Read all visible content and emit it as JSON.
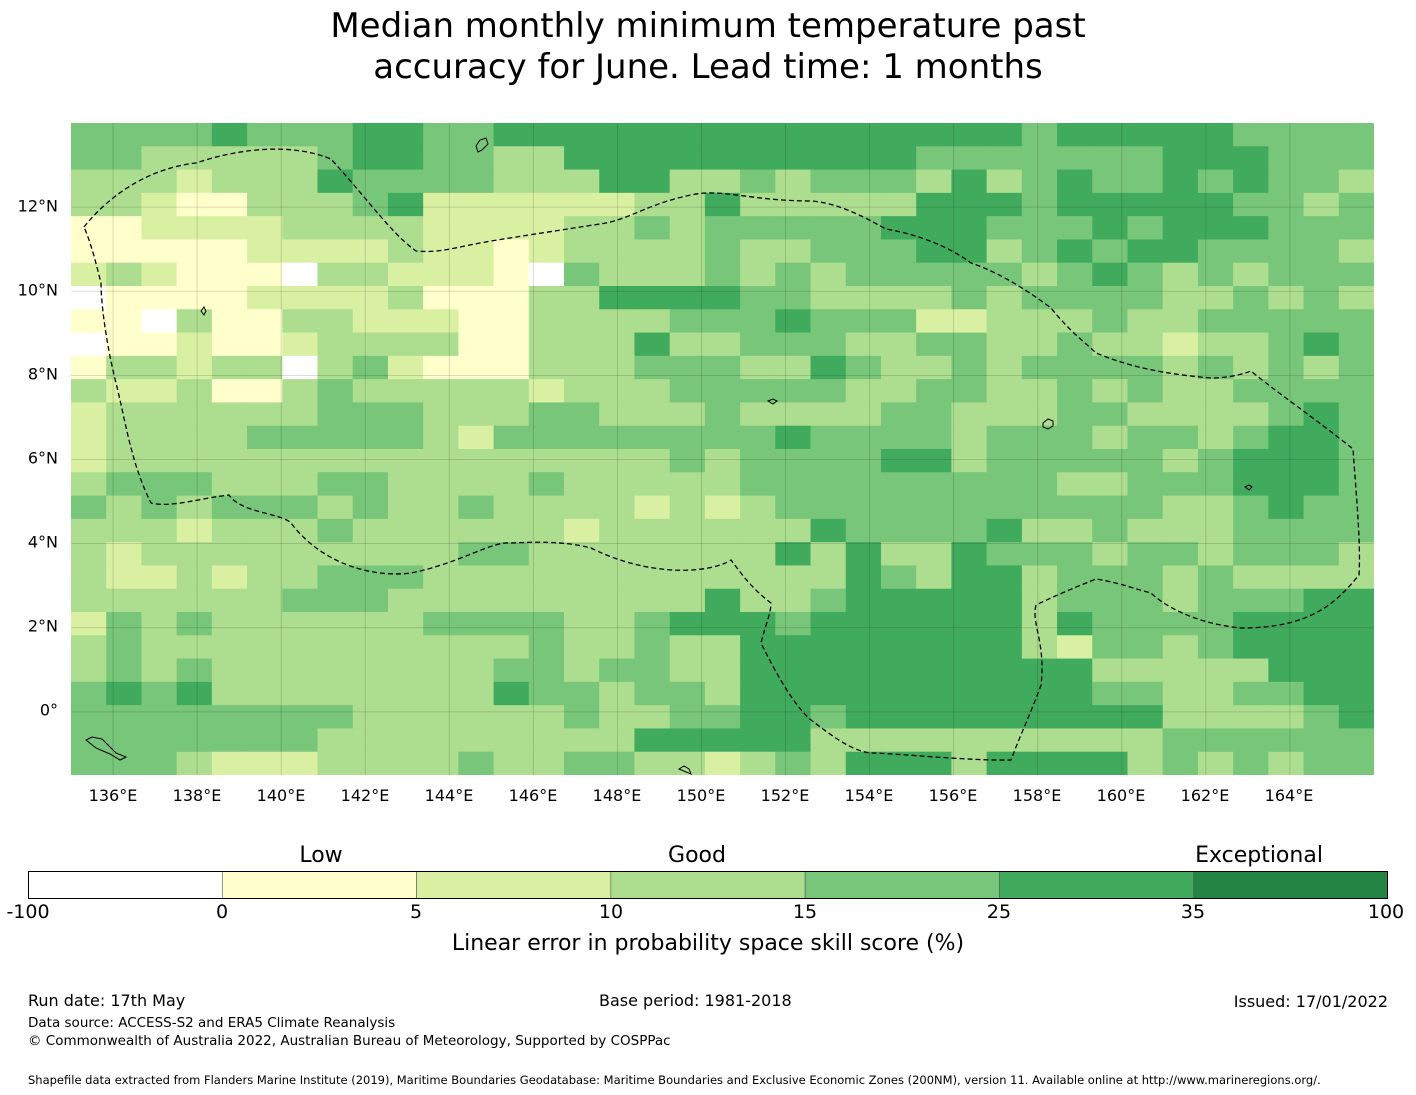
{
  "title_line1": "Median monthly minimum temperature past",
  "title_line2": "accuracy for June. Lead time: 1 months",
  "x_ticks": [
    "136°E",
    "138°E",
    "140°E",
    "142°E",
    "144°E",
    "146°E",
    "148°E",
    "150°E",
    "152°E",
    "154°E",
    "156°E",
    "158°E",
    "160°E",
    "162°E",
    "164°E"
  ],
  "y_ticks": [
    "12°N",
    "10°N",
    "8°N",
    "6°N",
    "4°N",
    "2°N",
    "0°"
  ],
  "colorbar": {
    "categories": [
      "Low",
      "Good",
      "Exceptional"
    ],
    "ticks": [
      "-100",
      "0",
      "5",
      "10",
      "15",
      "25",
      "35",
      "100"
    ],
    "colors": [
      "#ffffff",
      "#ffffcc",
      "#d9f0a3",
      "#addd8e",
      "#78c679",
      "#41ab5d",
      "#238443"
    ],
    "label": "Linear error in probability space skill score (%)"
  },
  "footer": {
    "run_date": "Run date: 17th May",
    "base_period": "Base period: 1981-2018",
    "issued": "Issued: 17/01/2022",
    "data_source": "Data source: ACCESS-S2 and ERA5 Climate Reanalysis",
    "copyright": "© Commonwealth of Australia 2022, Australian Bureau of Meteorology, Supported by COSPPac",
    "shapefile": "Shapefile data extracted from Flanders Marine Institute (2019), Maritime Boundaries Geodatabase: Maritime Boundaries and Exclusive Economic Zones (200NM), version 11. Available online at http://www.marineregions.org/."
  },
  "map": {
    "lon_range": [
      135,
      166
    ],
    "lat_range": [
      -1.5,
      14
    ],
    "grid_rows": [
      "4444544455445555555555555554555554444",
      "4433333455443355555555554444444555444",
      "3332333544443335533434443534544545443",
      "3321133345222222335333335554555554434",
      "1122223333222233434444455544454555444",
      "1111122223221233334334445534545544443",
      "2321110332221043334343444443454343444",
      "0111122223111335555443333434444334343",
      "1103113322211333344454442233343344444",
      "0112112333311333533444334433433233454",
      "1332330342111333444335433434444343434",
      "3223113433333233344444334433434334444",
      "2333333444333443334333344333443333454",
      "2333344444324444444454444344434434554",
      "2333333333333333343444455344444345554",
      "3444333443333433333444444444334445554",
      "4343444343343333232344444444444334544",
      "3332333433333323333335444453343334444",
      "3233333333344333333353533544434434443",
      "3223233444333333333333543553444343333",
      "3333334443333333335334555553444344455",
      "2434333333444433455545555553544445555",
      "3433333333333433433555555553244345555",
      "3434333333334434433555555555533333555",
      "4545333333335443443555555555544334455",
      "4444444433333343344554555555555333345",
      "4444444333333333555553333333333444444",
      "4443222333343344332343555355553434344"
    ]
  }
}
